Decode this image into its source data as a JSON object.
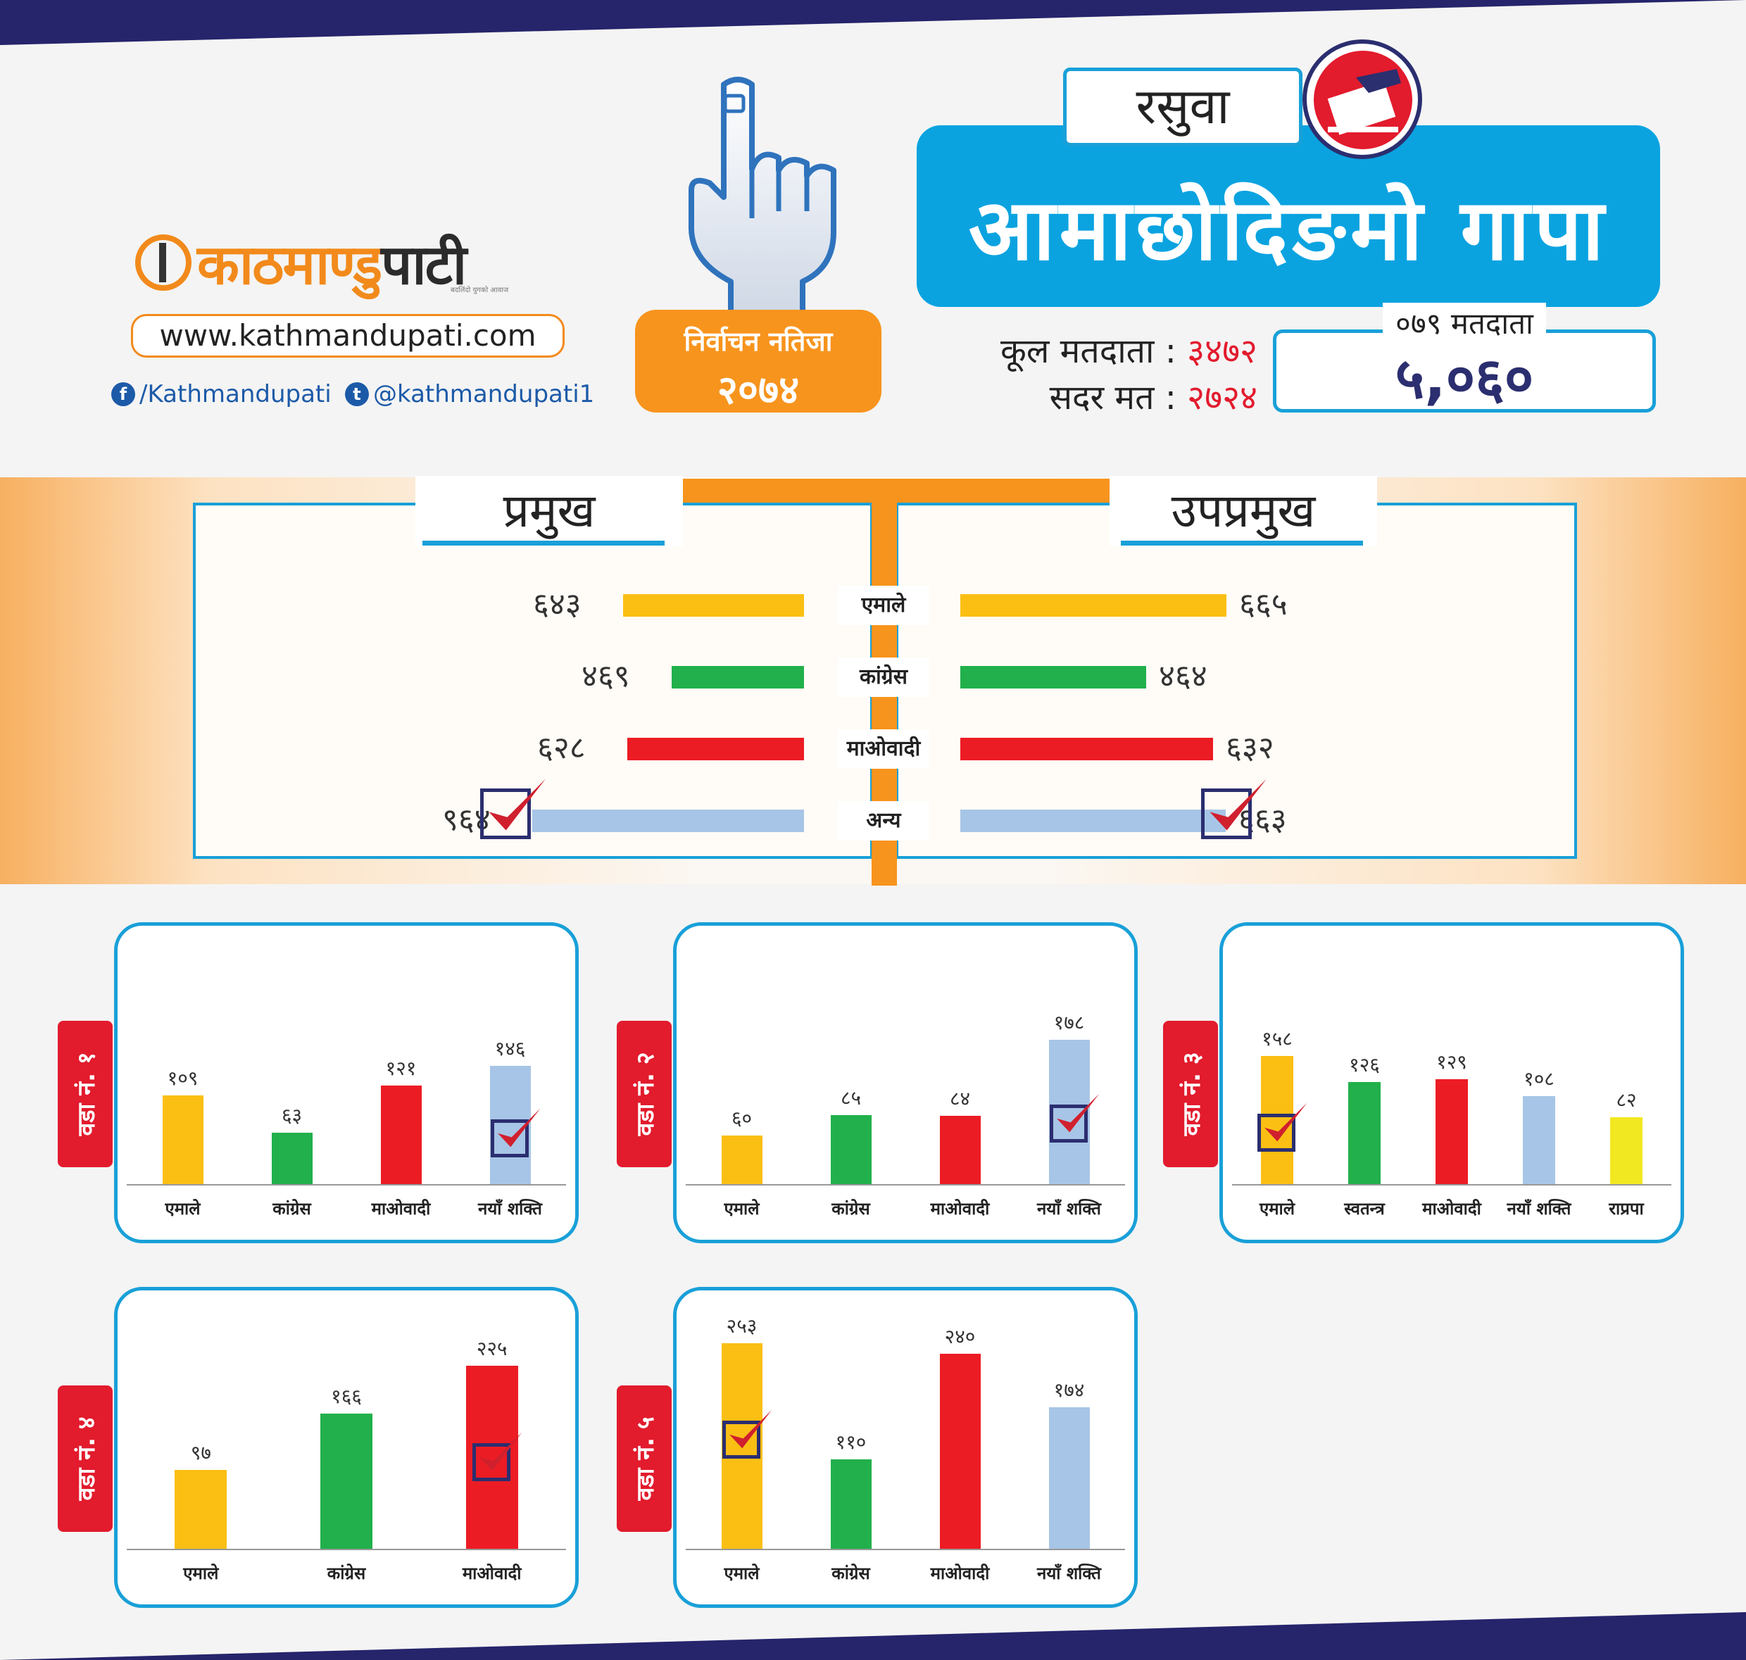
{
  "header": {
    "brand": {
      "part1": "काठमाण्डु",
      "part2": "पाटी",
      "tagline": "बदलिंदो युगको आवाज"
    },
    "website": "www.kathmandupati.com",
    "facebook": "/Kathmandupati",
    "twitter": "@kathmandupati1",
    "badge_line1": "निर्वाचन नतिजा",
    "badge_line2": "२०७४",
    "district": "रसुवा",
    "municipality": "आमाछोदिङमो गापा",
    "total_voters_label": "कूल मतदाता :",
    "total_voters": "३४७२",
    "valid_votes_label": "सदर मत :",
    "valid_votes": "२७२४",
    "voters_079_label": "०७९ मतदाता",
    "voters_079": "५,०६०"
  },
  "colors": {
    "uml": "#fbbf14",
    "congress": "#21b04b",
    "maoist": "#ec1c24",
    "other": "#a7c5e6",
    "rpp": "#f2e821",
    "accent": "#19a0d8",
    "orange": "#f7941d"
  },
  "chart_data": [
    {
      "type": "bar",
      "id": "head-results",
      "panels": [
        "प्रमुख",
        "उपप्रमुख"
      ],
      "categories": [
        "एमाले",
        "कांग्रेस",
        "माओवादी",
        "अन्य"
      ],
      "series": [
        {
          "name": "प्रमुख",
          "values": [
            643,
            469,
            628,
            964
          ],
          "labels": [
            "६४३",
            "४६९",
            "६२८",
            "९६४"
          ]
        },
        {
          "name": "उपप्रमुख",
          "values": [
            665,
            464,
            632,
            663
          ],
          "labels": [
            "६६५",
            "४६४",
            "६३२",
            "६६३"
          ]
        }
      ],
      "winner": {
        "प्रमुख": "अन्य",
        "उपप्रमुख": "अन्य"
      }
    },
    {
      "type": "bar",
      "ward": "वडा नं. १",
      "categories": [
        "एमाले",
        "कांग्रेस",
        "माओवादी",
        "नयाँ शक्ति"
      ],
      "values": [
        109,
        63,
        121,
        146
      ],
      "labels": [
        "१०९",
        "६३",
        "१२१",
        "१४६"
      ],
      "winner_index": 3
    },
    {
      "type": "bar",
      "ward": "वडा नं. २",
      "categories": [
        "एमाले",
        "कांग्रेस",
        "माओवादी",
        "नयाँ शक्ति"
      ],
      "values": [
        60,
        85,
        84,
        178
      ],
      "labels": [
        "६०",
        "८५",
        "८४",
        "१७८"
      ],
      "winner_index": 3
    },
    {
      "type": "bar",
      "ward": "वडा नं. ३",
      "categories": [
        "एमाले",
        "स्वतन्त्र",
        "माओवादी",
        "नयाँ शक्ति",
        "राप्रपा"
      ],
      "values": [
        158,
        126,
        129,
        108,
        82
      ],
      "labels": [
        "१५८",
        "१२६",
        "१२९",
        "१०८",
        "८२"
      ],
      "winner_index": 0
    },
    {
      "type": "bar",
      "ward": "वडा नं. ४",
      "categories": [
        "एमाले",
        "कांग्रेस",
        "माओवादी"
      ],
      "values": [
        97,
        166,
        225
      ],
      "labels": [
        "९७",
        "१६६",
        "२२५"
      ],
      "winner_index": 2
    },
    {
      "type": "bar",
      "ward": "वडा नं. ५",
      "categories": [
        "एमाले",
        "कांग्रेस",
        "माओवादी",
        "नयाँ शक्ति"
      ],
      "values": [
        253,
        110,
        240,
        174
      ],
      "labels": [
        "२५३",
        "११०",
        "२४०",
        "१७४"
      ],
      "winner_index": 0
    }
  ]
}
